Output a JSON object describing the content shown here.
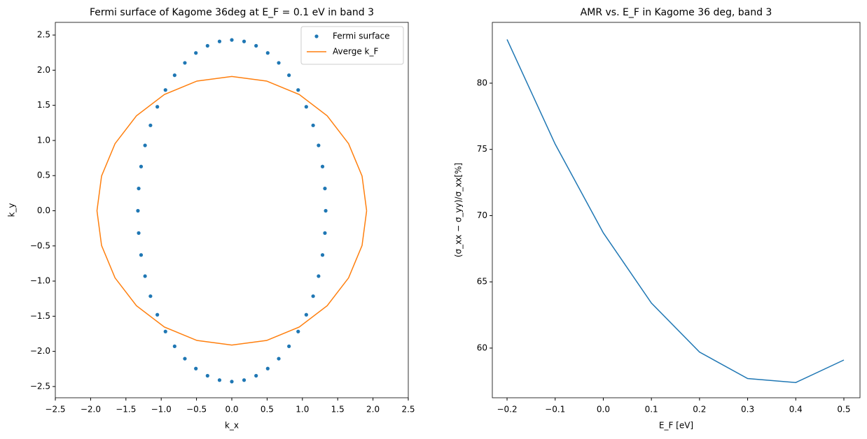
{
  "chart_data": [
    {
      "type": "scatter",
      "title": "Fermi surface of Kagome 36deg at E_F = 0.1 eV in band 3",
      "xlabel": "k_x",
      "ylabel": "k_y",
      "xlim": [
        -2.5,
        2.5
      ],
      "ylim": [
        -2.66,
        2.68
      ],
      "xticks": [
        {
          "value": -2.5,
          "label": "−2.5"
        },
        {
          "value": -2.0,
          "label": "−2.0"
        },
        {
          "value": -1.5,
          "label": "−1.5"
        },
        {
          "value": -1.0,
          "label": "−1.0"
        },
        {
          "value": -0.5,
          "label": "−0.5"
        },
        {
          "value": 0,
          "label": "0.0"
        },
        0.5,
        {
          "value": 1,
          "label": "1.0"
        },
        1.5,
        {
          "value": 2,
          "label": "2.0"
        },
        2.5
      ],
      "yticks": [
        {
          "value": -2.5,
          "label": "−2.5"
        },
        {
          "value": -2.0,
          "label": "−2.0"
        },
        {
          "value": -1.5,
          "label": "−1.5"
        },
        {
          "value": -1.0,
          "label": "−1.0"
        },
        {
          "value": -0.5,
          "label": "−0.5"
        },
        {
          "value": 0,
          "label": "0.0"
        },
        0.5,
        {
          "value": 1,
          "label": "1.0"
        },
        1.5,
        {
          "value": 2,
          "label": "2.0"
        },
        2.5
      ],
      "legend": "upper right",
      "series": [
        {
          "name": "Fermi surface",
          "color": "#1f77b4",
          "mode": "markers",
          "x": [
            1.33,
            1.319,
            1.285,
            1.229,
            1.152,
            1.055,
            0.94,
            0.81,
            0.665,
            0.509,
            0.344,
            0.174,
            0,
            -0.174,
            -0.344,
            -0.509,
            -0.665,
            -0.81,
            -0.94,
            -1.055,
            -1.152,
            -1.229,
            -1.285,
            -1.319,
            -1.33,
            -1.319,
            -1.285,
            -1.229,
            -1.152,
            -1.055,
            -0.94,
            -0.81,
            -0.665,
            -0.509,
            -0.344,
            -0.174,
            0,
            0.174,
            0.344,
            0.509,
            0.665,
            0.81,
            0.94,
            1.055,
            1.152,
            1.229,
            1.285,
            1.319
          ],
          "y": [
            0,
            0.317,
            0.629,
            0.93,
            1.215,
            1.479,
            1.718,
            1.928,
            2.104,
            2.245,
            2.347,
            2.409,
            2.43,
            2.409,
            2.347,
            2.245,
            2.104,
            1.928,
            1.718,
            1.479,
            1.215,
            0.93,
            0.629,
            0.317,
            0,
            -0.317,
            -0.629,
            -0.93,
            -1.215,
            -1.479,
            -1.718,
            -1.928,
            -2.104,
            -2.245,
            -2.347,
            -2.409,
            -2.43,
            -2.409,
            -2.347,
            -2.245,
            -2.104,
            -1.928,
            -1.718,
            -1.479,
            -1.215,
            -0.93,
            -0.629,
            -0.317
          ]
        },
        {
          "name": "Averge k_F",
          "color": "#ff7f0e",
          "mode": "line",
          "x": [
            1.91,
            1.845,
            1.654,
            1.351,
            0.955,
            0.494,
            0,
            -0.494,
            -0.955,
            -1.351,
            -1.654,
            -1.845,
            -1.91,
            -1.845,
            -1.654,
            -1.351,
            -0.955,
            -0.494,
            0,
            0.494,
            0.955,
            1.351,
            1.654,
            1.845,
            1.91
          ],
          "y": [
            0,
            0.494,
            0.955,
            1.351,
            1.654,
            1.845,
            1.91,
            1.845,
            1.654,
            1.351,
            0.955,
            0.494,
            0,
            -0.494,
            -0.955,
            -1.351,
            -1.654,
            -1.845,
            -1.91,
            -1.845,
            -1.654,
            -1.351,
            -0.955,
            -0.494,
            0
          ]
        }
      ]
    },
    {
      "type": "line",
      "title": "AMR vs. E_F in Kagome 36 deg, band 3",
      "xlabel": "E_F [eV]",
      "ylabel": "(σ_xx − σ_yy)/σ_xx[%]",
      "xlim": [
        -0.2306,
        0.5335
      ],
      "ylim": [
        56.25,
        84.59
      ],
      "xticks": [
        {
          "value": -0.2,
          "label": "−0.2"
        },
        {
          "value": -0.1,
          "label": "−0.1"
        },
        {
          "value": 0,
          "label": "0.0"
        },
        0.1,
        0.2,
        0.3,
        0.4,
        0.5
      ],
      "yticks": [
        60,
        65,
        70,
        75,
        80
      ],
      "color": "#1f77b4",
      "x": [
        -0.2,
        -0.1,
        0,
        0.1,
        0.2,
        0.3,
        0.4,
        0.5
      ],
      "values": [
        83.3,
        75.4,
        68.7,
        63.4,
        59.7,
        57.7,
        57.4,
        59.1
      ]
    }
  ]
}
